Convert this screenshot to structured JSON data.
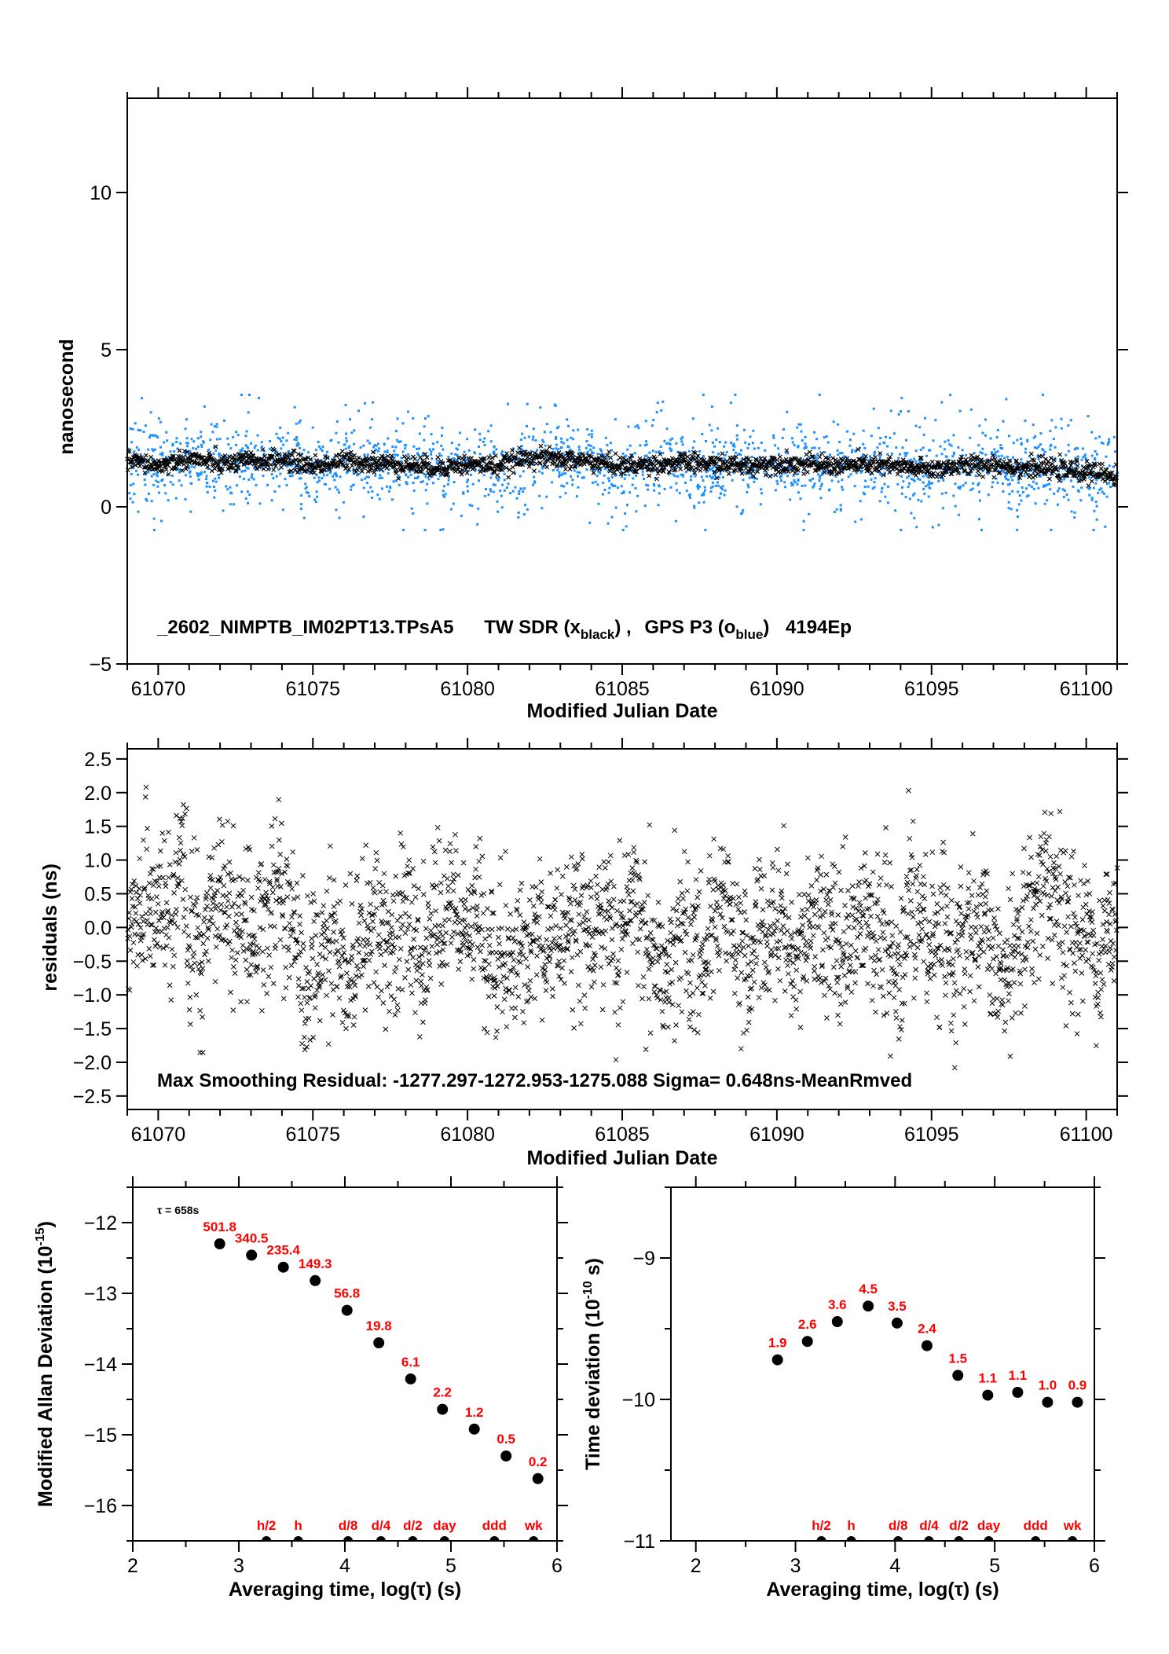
{
  "chart_data": [
    {
      "id": "time-series",
      "type": "scatter",
      "title": "_2602_NIMPTB_IM02PT13.TPsA5    TW SDR (x_black) ,  GPS P3 (o_blue)  4194Ep",
      "title_parts": {
        "file": "_2602_NIMPTB_IM02PT13.TPsA5",
        "series1_prefix": "TW SDR (x",
        "series1_sub": "black",
        "series1_suffix": ") ,",
        "series2_prefix": "GPS P3 (o",
        "series2_sub": "blue",
        "series2_suffix": ")",
        "epochs": "4194Ep"
      },
      "xlabel": "Modified Julian Date",
      "ylabel": "nanosecond",
      "xlim": [
        61069.0,
        61101.0
      ],
      "ylim": [
        -5,
        13
      ],
      "xticks": [
        61070,
        61075,
        61080,
        61085,
        61090,
        61095,
        61100
      ],
      "xtick_labels": [
        "61070",
        "61075",
        "61080",
        "61085",
        "61090",
        "61095",
        "61100"
      ],
      "yticks": [
        -5,
        0,
        5,
        10
      ],
      "ytick_labels": [
        "−5",
        "0",
        "5",
        "10"
      ],
      "series": [
        {
          "name": "TW SDR",
          "marker": "x",
          "color": "#000000",
          "n_points": 4194,
          "trend_x": [
            61069,
            61070,
            61071,
            61072,
            61073,
            61074,
            61075,
            61076,
            61077,
            61078,
            61079,
            61080,
            61081,
            61082,
            61083,
            61084,
            61085,
            61086,
            61087,
            61088,
            61089,
            61090,
            61091,
            61092,
            61093,
            61094,
            61095,
            61096,
            61097,
            61098,
            61099,
            61100,
            61101
          ],
          "trend_y": [
            1.5,
            1.3,
            1.55,
            1.35,
            1.45,
            1.5,
            1.3,
            1.45,
            1.4,
            1.35,
            1.25,
            1.35,
            1.3,
            1.6,
            1.5,
            1.45,
            1.3,
            1.35,
            1.4,
            1.35,
            1.3,
            1.4,
            1.35,
            1.3,
            1.35,
            1.25,
            1.2,
            1.3,
            1.35,
            1.25,
            1.2,
            1.1,
            1.0
          ],
          "spread_ns": 0.15
        },
        {
          "name": "GPS P3",
          "marker": "o",
          "color": "#1e90ff",
          "center_ns": 1.35,
          "spread_ns": 0.65,
          "range_ns": [
            -0.7,
            3.6
          ]
        }
      ]
    },
    {
      "id": "residuals",
      "type": "scatter",
      "xlabel": "Modified Julian Date",
      "ylabel": "residuals (ns)",
      "xlim": [
        61069.0,
        61101.0
      ],
      "ylim": [
        -2.7,
        2.65
      ],
      "xticks": [
        61070,
        61075,
        61080,
        61085,
        61090,
        61095,
        61100
      ],
      "xtick_labels": [
        "61070",
        "61075",
        "61080",
        "61085",
        "61090",
        "61095",
        "61100"
      ],
      "yticks": [
        -2.5,
        -2.0,
        -1.5,
        -1.0,
        -0.5,
        0.0,
        0.5,
        1.0,
        1.5,
        2.0,
        2.5
      ],
      "ytick_labels": [
        "−2.5",
        "−2.0",
        "−1.5",
        "−1.0",
        "−0.5",
        "0.0",
        "0.5",
        "1.0",
        "1.5",
        "2.0",
        "2.5"
      ],
      "annotation": "Max Smoothing Residual: -1277.297-1272.953-1275.088  Sigma= 0.648ns-MeanRmved",
      "series": [
        {
          "name": "residuals",
          "marker": "x",
          "color": "#000000",
          "sigma_ns": 0.648,
          "range_ns": [
            -2.3,
            2.15
          ]
        }
      ]
    },
    {
      "id": "mdev",
      "type": "scatter",
      "xlabel": "Averaging time, log(τ) (s)",
      "ylabel": "Modified Allan Deviation (10",
      "ylabel_sup": "-15",
      "ylabel_end": ")",
      "xlim": [
        2,
        6
      ],
      "ylim": [
        -16.5,
        -11.5
      ],
      "xticks": [
        2,
        3,
        4,
        5,
        6
      ],
      "xtick_labels": [
        "2",
        "3",
        "4",
        "5",
        "6"
      ],
      "yticks": [
        -16,
        -15,
        -14,
        -13,
        -12
      ],
      "ytick_labels": [
        "−16",
        "−15",
        "−14",
        "−13",
        "−12"
      ],
      "note": "τ = 658s",
      "x": [
        2.82,
        3.12,
        3.42,
        3.72,
        4.02,
        4.32,
        4.62,
        4.92,
        5.22,
        5.52,
        5.82
      ],
      "y": [
        -12.3,
        -12.46,
        -12.63,
        -12.82,
        -13.24,
        -13.7,
        -14.21,
        -14.64,
        -14.92,
        -15.3,
        -15.62
      ],
      "labels": [
        "501.8",
        "340.5",
        "235.4",
        "149.3",
        "56.8",
        "19.8",
        "6.1",
        "2.2",
        "1.2",
        "0.5",
        "0.2"
      ],
      "label_color": "#ff0000",
      "markers": {
        "x": [
          3.26,
          3.56,
          4.03,
          4.34,
          4.64,
          4.94,
          5.41,
          5.78
        ],
        "labels": [
          "h/2",
          "h",
          "d/8",
          "d/4",
          "d/2",
          "day",
          "ddd",
          "wk"
        ]
      }
    },
    {
      "id": "tdev",
      "type": "scatter",
      "xlabel": "Averaging time, log(τ) (s)",
      "ylabel": "Time deviation (10",
      "ylabel_sup": "-10",
      "ylabel_end": " s)",
      "xlim": [
        1.75,
        6
      ],
      "ylim": [
        -11,
        -8.5
      ],
      "xticks": [
        2,
        3,
        4,
        5,
        6
      ],
      "xtick_labels": [
        "2",
        "3",
        "4",
        "5",
        "6"
      ],
      "yticks": [
        -11,
        -10,
        -9
      ],
      "ytick_labels": [
        "−11",
        "−10",
        "−9"
      ],
      "x": [
        2.82,
        3.12,
        3.42,
        3.73,
        4.02,
        4.32,
        4.63,
        4.93,
        5.23,
        5.53,
        5.83
      ],
      "y": [
        -9.72,
        -9.59,
        -9.45,
        -9.34,
        -9.46,
        -9.62,
        -9.83,
        -9.97,
        -9.95,
        -10.02,
        -10.02
      ],
      "labels": [
        "1.9",
        "2.6",
        "3.6",
        "4.5",
        "3.5",
        "2.4",
        "1.5",
        "1.1",
        "1.1",
        "1.0",
        "0.9"
      ],
      "label_color": "#ff0000",
      "markers": {
        "x": [
          3.26,
          3.56,
          4.03,
          4.34,
          4.64,
          4.94,
          5.41,
          5.78
        ],
        "labels": [
          "h/2",
          "h",
          "d/8",
          "d/4",
          "d/2",
          "day",
          "ddd",
          "wk"
        ]
      }
    }
  ]
}
